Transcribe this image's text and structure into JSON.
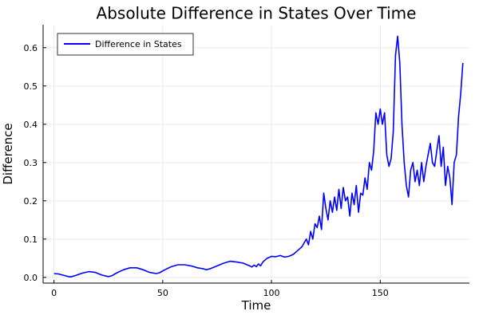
{
  "chart_data": {
    "type": "line",
    "title": "Absolute Difference in States Over Time",
    "xlabel": "Time",
    "ylabel": "Difference",
    "xlim": [
      -5,
      191
    ],
    "ylim": [
      -0.015,
      0.66
    ],
    "xticks": [
      0,
      50,
      100,
      150
    ],
    "yticks": [
      0.0,
      0.1,
      0.2,
      0.3,
      0.4,
      0.5,
      0.6
    ],
    "xtick_labels": [
      "0",
      "50",
      "100",
      "150"
    ],
    "ytick_labels": [
      "0.0",
      "0.1",
      "0.2",
      "0.3",
      "0.4",
      "0.5",
      "0.6"
    ],
    "grid": true,
    "legend_position": "top-left",
    "series": [
      {
        "name": "Difference in States",
        "color": "#0000ff",
        "x": [
          0,
          2,
          4,
          6,
          7.5,
          10,
          13,
          16,
          19,
          22,
          25,
          26.5,
          29,
          32,
          35,
          38,
          41,
          44,
          47,
          48.5,
          51,
          54,
          57,
          60,
          63,
          66,
          69,
          70,
          72,
          75,
          78,
          81,
          84,
          87,
          90,
          91,
          92,
          93,
          94,
          95,
          96,
          97,
          98,
          99,
          100,
          102,
          104,
          106,
          108,
          110,
          112,
          113,
          114,
          115,
          116,
          117,
          118,
          119,
          120,
          121,
          122,
          123,
          124,
          125,
          126,
          127,
          128,
          129,
          130,
          131,
          132,
          133,
          134,
          135,
          136,
          137,
          138,
          139,
          140,
          141,
          142,
          143,
          144,
          145,
          146,
          147,
          148,
          149,
          150,
          151,
          152,
          153,
          154,
          155,
          156,
          157,
          158,
          159,
          160,
          161,
          162,
          163,
          164,
          165,
          166,
          167,
          168,
          169,
          170,
          171,
          172,
          173,
          174,
          175,
          176,
          177,
          178,
          179,
          180,
          181,
          182,
          183,
          184,
          185,
          186,
          187,
          188
        ],
        "y": [
          0.01,
          0.009,
          0.006,
          0.003,
          0.001,
          0.005,
          0.011,
          0.015,
          0.013,
          0.006,
          0.002,
          0.004,
          0.012,
          0.02,
          0.025,
          0.025,
          0.02,
          0.013,
          0.01,
          0.012,
          0.02,
          0.028,
          0.033,
          0.033,
          0.03,
          0.025,
          0.022,
          0.02,
          0.023,
          0.03,
          0.037,
          0.042,
          0.04,
          0.037,
          0.03,
          0.027,
          0.032,
          0.028,
          0.035,
          0.03,
          0.04,
          0.045,
          0.05,
          0.052,
          0.055,
          0.054,
          0.057,
          0.053,
          0.055,
          0.06,
          0.07,
          0.075,
          0.08,
          0.09,
          0.1,
          0.085,
          0.12,
          0.1,
          0.14,
          0.13,
          0.16,
          0.125,
          0.22,
          0.18,
          0.15,
          0.2,
          0.17,
          0.21,
          0.175,
          0.23,
          0.18,
          0.235,
          0.2,
          0.21,
          0.16,
          0.22,
          0.19,
          0.24,
          0.17,
          0.22,
          0.215,
          0.26,
          0.23,
          0.3,
          0.28,
          0.33,
          0.43,
          0.4,
          0.44,
          0.4,
          0.43,
          0.32,
          0.29,
          0.31,
          0.38,
          0.58,
          0.63,
          0.56,
          0.4,
          0.3,
          0.24,
          0.21,
          0.28,
          0.3,
          0.25,
          0.28,
          0.24,
          0.3,
          0.25,
          0.29,
          0.32,
          0.35,
          0.3,
          0.29,
          0.33,
          0.37,
          0.29,
          0.34,
          0.24,
          0.29,
          0.26,
          0.19,
          0.3,
          0.32,
          0.42,
          0.48,
          0.56
        ]
      }
    ]
  }
}
